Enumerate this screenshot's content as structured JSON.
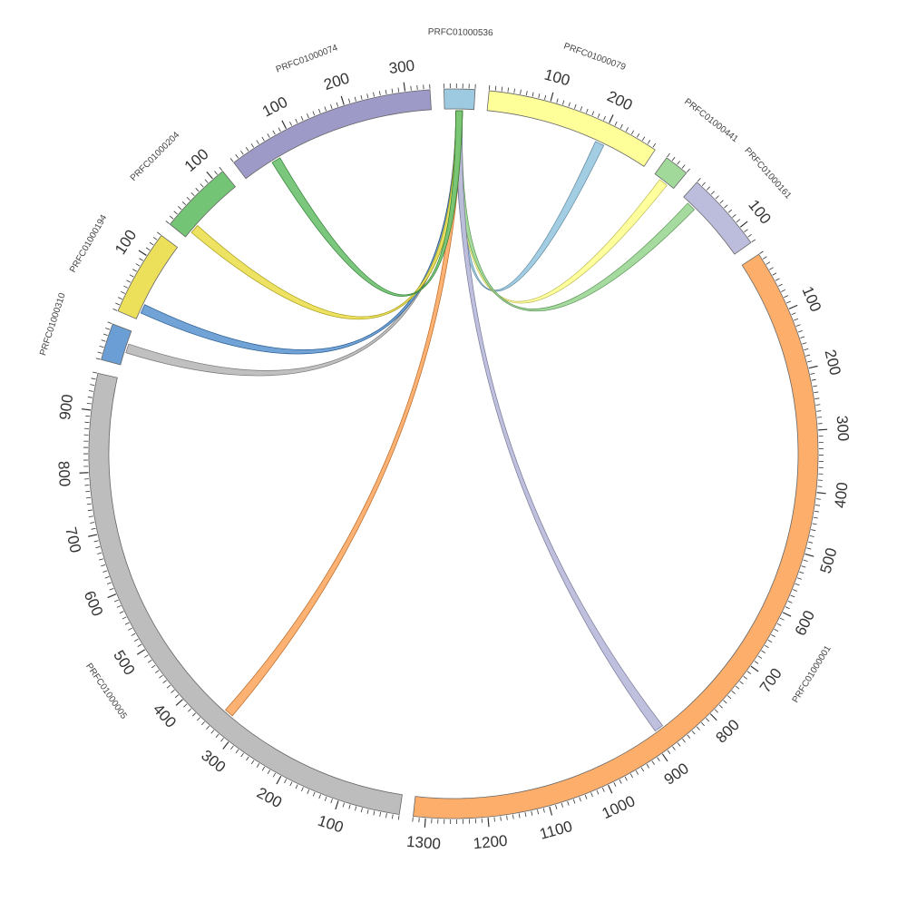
{
  "chart_data": {
    "type": "chord",
    "segments": [
      {
        "name": "PRFC01000536",
        "length": 50,
        "color": "#9ecae1",
        "ticks": []
      },
      {
        "name": "PRFC01000079",
        "length": 285,
        "color": "#ffff99",
        "ticks": [
          100,
          200
        ]
      },
      {
        "name": "PRFC01000441",
        "length": 40,
        "color": "#a1d99b",
        "ticks": []
      },
      {
        "name": "PRFC01000161",
        "length": 130,
        "color": "#bcbddc",
        "ticks": [
          100
        ]
      },
      {
        "name": "PRFC01000001",
        "length": 1320,
        "color": "#fdae6b",
        "ticks": [
          100,
          200,
          300,
          400,
          500,
          600,
          700,
          800,
          900,
          1000,
          1100,
          1200,
          1300
        ]
      },
      {
        "name": "PRFC01000005",
        "length": 960,
        "color": "#bdbdbd",
        "ticks": [
          100,
          200,
          300,
          400,
          500,
          600,
          700,
          800,
          900
        ]
      },
      {
        "name": "PRFC01000310",
        "length": 60,
        "color": "#6a9ed4",
        "ticks": []
      },
      {
        "name": "PRFC01000194",
        "length": 140,
        "color": "#ece05a",
        "ticks": [
          100
        ]
      },
      {
        "name": "PRFC01000204",
        "length": 120,
        "color": "#74c476",
        "ticks": [
          100
        ]
      },
      {
        "name": "PRFC01000074",
        "length": 340,
        "color": "#9e9ac8",
        "ticks": [
          100,
          200,
          300
        ]
      }
    ],
    "links": [
      {
        "source": "PRFC01000536",
        "target": "PRFC01000079",
        "target_pos": 200,
        "color": "#9ecae1"
      },
      {
        "source": "PRFC01000536",
        "target": "PRFC01000441",
        "target_pos": 20,
        "color": "#ffff99"
      },
      {
        "source": "PRFC01000536",
        "target": "PRFC01000161",
        "target_pos": 20,
        "color": "#a1d99b"
      },
      {
        "source": "PRFC01000536",
        "target": "PRFC01000001",
        "target_pos": 880,
        "color": "#bcbddc"
      },
      {
        "source": "PRFC01000536",
        "target": "PRFC01000005",
        "target_pos": 330,
        "color": "#fdae6b"
      },
      {
        "source": "PRFC01000536",
        "target": "PRFC01000310",
        "target_pos": 30,
        "color": "#bdbdbd"
      },
      {
        "source": "PRFC01000536",
        "target": "PRFC01000194",
        "target_pos": 20,
        "color": "#6a9ed4"
      },
      {
        "source": "PRFC01000536",
        "target": "PRFC01000204",
        "target_pos": 20,
        "color": "#ece05a"
      },
      {
        "source": "PRFC01000536",
        "target": "PRFC01000074",
        "target_pos": 60,
        "color": "#74c476"
      }
    ]
  }
}
